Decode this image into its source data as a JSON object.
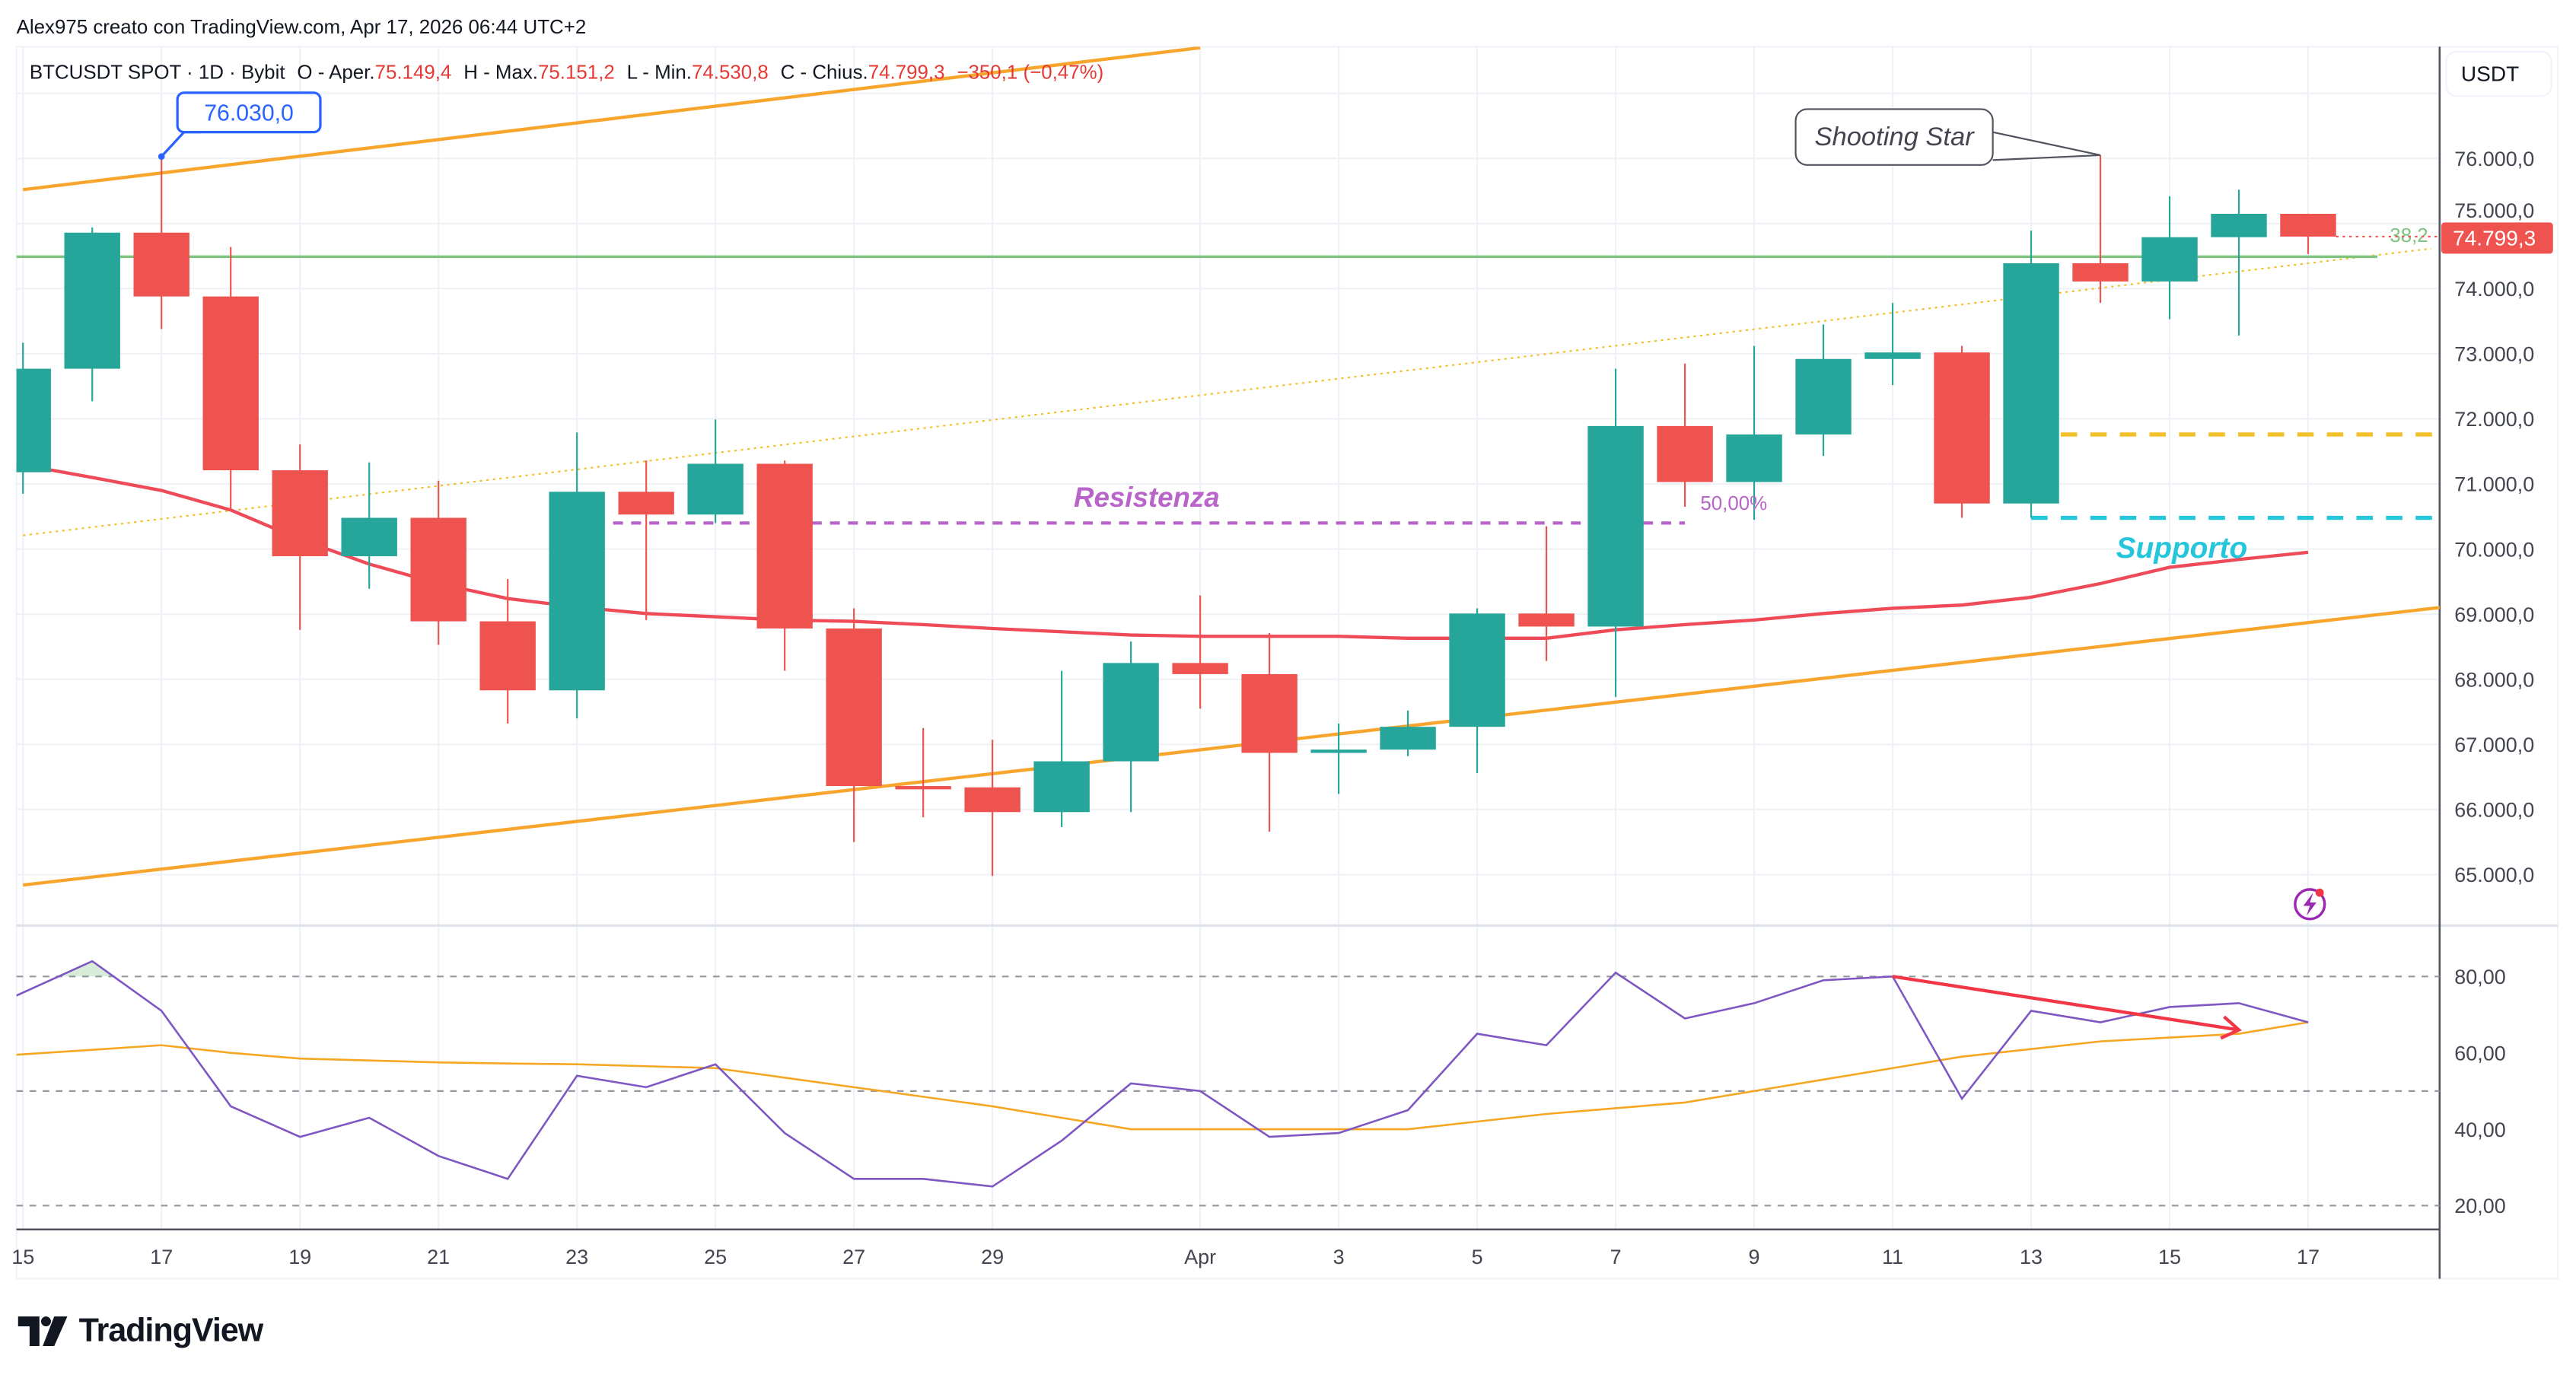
{
  "header": {
    "attribution": "Alex975 creato con TradingView.com, Apr 17, 2026 06:44 UTC+2"
  },
  "legend": {
    "symbol": "BTCUSDT SPOT · 1D · Bybit",
    "open_label": "O - Aper.",
    "open": "75.149,4",
    "high_label": "H - Max.",
    "high": "75.151,2",
    "low_label": "L - Min.",
    "low": "74.530,8",
    "close_label": "C - Chius.",
    "close": "74.799,3",
    "change": "−350,1 (−0,47%)"
  },
  "currency_button": "USDT",
  "last_price_label": "74.799,3",
  "logo_text": "TradingView",
  "colors": {
    "up": "#26a69a",
    "down": "#ef5350",
    "ma": "#ee4a58",
    "channel": "#f7a52c",
    "rsi": "#7e57c2",
    "rsi_ma": "#f5a623",
    "resistance": "#b864c8",
    "support": "#26c6da",
    "fib": "#7cc47f",
    "yellow_level": "#f2c12e",
    "callout_blue": "#2962ff"
  },
  "price_axis": {
    "ticks": [
      65000,
      66000,
      67000,
      68000,
      69000,
      70000,
      71000,
      72000,
      73000,
      74000,
      75000,
      76000
    ],
    "labels": [
      "65.000,0",
      "66.000,0",
      "67.000,0",
      "68.000,0",
      "69.000,0",
      "70.000,0",
      "71.000,0",
      "72.000,0",
      "73.000,0",
      "74.000,0",
      "75.000,0",
      "76.000,0"
    ]
  },
  "rsi_axis": {
    "ticks": [
      80,
      60,
      40,
      20
    ],
    "labels": [
      "80,00",
      "60,00",
      "40,00",
      "20,00"
    ],
    "bands": [
      80,
      50,
      20
    ]
  },
  "time_axis": [
    {
      "date": "2026-03-15",
      "label": "15"
    },
    {
      "date": "2026-03-17",
      "label": "17"
    },
    {
      "date": "2026-03-19",
      "label": "19"
    },
    {
      "date": "2026-03-21",
      "label": "21"
    },
    {
      "date": "2026-03-23",
      "label": "23"
    },
    {
      "date": "2026-03-25",
      "label": "25"
    },
    {
      "date": "2026-03-27",
      "label": "27"
    },
    {
      "date": "2026-03-29",
      "label": "29"
    },
    {
      "date": "2026-04-01",
      "label": "Apr"
    },
    {
      "date": "2026-04-03",
      "label": "3"
    },
    {
      "date": "2026-04-05",
      "label": "5"
    },
    {
      "date": "2026-04-07",
      "label": "7"
    },
    {
      "date": "2026-04-09",
      "label": "9"
    },
    {
      "date": "2026-04-11",
      "label": "11"
    },
    {
      "date": "2026-04-13",
      "label": "13"
    },
    {
      "date": "2026-04-15",
      "label": "15"
    },
    {
      "date": "2026-04-17",
      "label": "17"
    }
  ],
  "candles": [
    [
      "2026-03-15",
      71180,
      73170,
      70850,
      72770
    ],
    [
      "2026-03-16",
      72770,
      74940,
      72270,
      74860
    ],
    [
      "2026-03-17",
      74860,
      76030,
      73380,
      73880
    ],
    [
      "2026-03-18",
      73880,
      74640,
      70600,
      71210
    ],
    [
      "2026-03-19",
      71210,
      71610,
      68760,
      69890
    ],
    [
      "2026-03-20",
      69890,
      71330,
      69390,
      70480
    ],
    [
      "2026-03-21",
      70480,
      71050,
      68530,
      68890
    ],
    [
      "2026-03-22",
      68890,
      69540,
      67320,
      67830
    ],
    [
      "2026-03-23",
      67830,
      71790,
      67400,
      70880
    ],
    [
      "2026-03-24",
      70880,
      71360,
      68910,
      70530
    ],
    [
      "2026-03-25",
      70530,
      71990,
      70400,
      71310
    ],
    [
      "2026-03-26",
      71310,
      71360,
      68130,
      68780
    ],
    [
      "2026-03-27",
      68780,
      69090,
      65500,
      66360
    ],
    [
      "2026-03-28",
      66360,
      67250,
      65880,
      66310
    ],
    [
      "2026-03-29",
      66340,
      67070,
      64980,
      65960
    ],
    [
      "2026-03-30",
      65960,
      68130,
      65730,
      66740
    ],
    [
      "2026-03-31",
      66740,
      68580,
      65960,
      68250
    ],
    [
      "2026-04-01",
      68250,
      69290,
      67550,
      68080
    ],
    [
      "2026-04-02",
      68080,
      68710,
      65660,
      66870
    ],
    [
      "2026-04-03",
      66870,
      67320,
      66240,
      66920
    ],
    [
      "2026-04-04",
      66920,
      67520,
      66820,
      67270
    ],
    [
      "2026-04-05",
      67270,
      69090,
      66560,
      69010
    ],
    [
      "2026-04-06",
      69010,
      70350,
      68280,
      68810
    ],
    [
      "2026-04-07",
      68810,
      72770,
      67730,
      71890
    ],
    [
      "2026-04-08",
      71890,
      72850,
      70650,
      71030
    ],
    [
      "2026-04-09",
      71030,
      73120,
      70450,
      71760
    ],
    [
      "2026-04-10",
      71760,
      73450,
      71430,
      72920
    ],
    [
      "2026-04-11",
      72920,
      73780,
      72520,
      73020
    ],
    [
      "2026-04-12",
      73020,
      73120,
      70480,
      70700
    ],
    [
      "2026-04-13",
      70700,
      74890,
      70480,
      74390
    ],
    [
      "2026-04-14",
      74390,
      76050,
      73780,
      74110
    ],
    [
      "2026-04-15",
      74110,
      75420,
      73530,
      74790
    ],
    [
      "2026-04-16",
      74790,
      75520,
      73280,
      75149.4
    ],
    [
      "2026-04-17",
      75149.4,
      75151.2,
      74530.8,
      74799.3
    ]
  ],
  "moving_average": [
    71310,
    71100,
    70900,
    70600,
    70150,
    69770,
    69470,
    69240,
    69110,
    69010,
    68960,
    68910,
    68890,
    68840,
    68780,
    68730,
    68680,
    68660,
    68660,
    68660,
    68630,
    68630,
    68630,
    68760,
    68840,
    68910,
    69010,
    69090,
    69140,
    69260,
    69470,
    69720,
    69840,
    69950
  ],
  "rsi": [
    75,
    84,
    71,
    46,
    38,
    43,
    33,
    27,
    54,
    51,
    57,
    39,
    27,
    27,
    25,
    37,
    52,
    50,
    38,
    39,
    45,
    65,
    62,
    81,
    69,
    73,
    79,
    80,
    48,
    71,
    68,
    72,
    73,
    68
  ],
  "rsi_ma": [
    59.5,
    60.8,
    62,
    60,
    58.5,
    58,
    57.5,
    57.2,
    57,
    56.5,
    56,
    53.5,
    51,
    48.5,
    46,
    43,
    40,
    40,
    40,
    40,
    40,
    42,
    44,
    45.5,
    47,
    50,
    53,
    56,
    59,
    61,
    63,
    64,
    65,
    68
  ],
  "drawings": {
    "channel_upper": {
      "from": [
        "2026-03-15",
        75520
      ],
      "to": [
        "2026-04-01",
        77700
      ]
    },
    "channel_lower": {
      "from": [
        "2026-03-15",
        64840
      ],
      "to": [
        "2026-04-17",
        68870
      ],
      "extend": "right"
    },
    "dotted_trend": {
      "from": [
        "2026-03-15",
        70210
      ],
      "to": [
        "2026-04-17",
        74390
      ],
      "extend": "right"
    },
    "fib_382": {
      "price": 74490,
      "from": "2026-03-15",
      "to": "2026-04-18",
      "label": "38,2"
    },
    "fib_50_label": "50,00%",
    "resistance": {
      "price": 70400,
      "from": "2026-03-23",
      "to": "2026-04-08",
      "label": "Resistenza"
    },
    "support": {
      "price": 70480,
      "from": "2026-04-13",
      "label": "Supporto"
    },
    "yellow_level": {
      "price": 71760,
      "from": "2026-04-13"
    },
    "high_callout": {
      "label": "76.030,0",
      "date": "2026-03-17",
      "price": 76030
    },
    "pattern_callout": {
      "label": "Shooting Star",
      "date": "2026-04-14",
      "price": 76050
    },
    "rsi_divergence": {
      "from": [
        "2026-04-11",
        80
      ],
      "to": [
        "2026-04-16",
        66
      ]
    }
  },
  "alert_icon": "lightning-alert-icon"
}
